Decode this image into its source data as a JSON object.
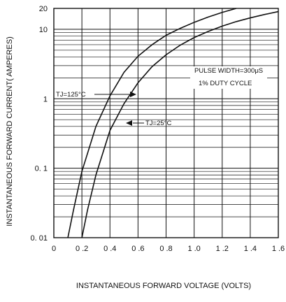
{
  "chart_data": {
    "type": "line",
    "title": "",
    "xlabel": "INSTANTANEOUS FORWARD VOLTAGE (VOLTS)",
    "ylabel": "INSTANTANEOUS FORWARD CURRENT( AMPERES)",
    "xlim": [
      0,
      1.6
    ],
    "ylim": [
      0.01,
      20
    ],
    "yscale": "log",
    "x_ticks": [
      {
        "value": 0,
        "label": "0"
      },
      {
        "value": 0.2,
        "label": "0 .2"
      },
      {
        "value": 0.4,
        "label": "0 .4"
      },
      {
        "value": 0.6,
        "label": "0 .6"
      },
      {
        "value": 0.8,
        "label": "0 .8"
      },
      {
        "value": 1.0,
        "label": "1 .0"
      },
      {
        "value": 1.2,
        "label": "1 .2"
      },
      {
        "value": 1.4,
        "label": "1 .4"
      },
      {
        "value": 1.6,
        "label": "1 .6"
      }
    ],
    "y_ticks": [
      {
        "value": 20,
        "label": "20"
      },
      {
        "value": 10,
        "label": "10"
      },
      {
        "value": 1,
        "label": "1"
      },
      {
        "value": 0.1,
        "label": "0. 1"
      },
      {
        "value": 0.01,
        "label": "0. 01"
      }
    ],
    "grid": true,
    "series": [
      {
        "name": "TJ=125°C",
        "x": [
          0.1,
          0.14,
          0.2,
          0.3,
          0.4,
          0.5,
          0.6,
          0.7,
          0.8,
          0.9,
          1.0,
          1.1,
          1.2,
          1.3
        ],
        "y": [
          0.01,
          0.025,
          0.09,
          0.4,
          1.1,
          2.4,
          4.1,
          6.0,
          8.2,
          10.3,
          12.6,
          15.0,
          17.5,
          20
        ]
      },
      {
        "name": "TJ=25°C",
        "x": [
          0.2,
          0.24,
          0.3,
          0.4,
          0.5,
          0.6,
          0.7,
          0.8,
          0.9,
          1.0,
          1.1,
          1.2,
          1.3,
          1.4,
          1.5,
          1.6
        ],
        "y": [
          0.01,
          0.025,
          0.08,
          0.35,
          0.85,
          1.7,
          2.9,
          4.3,
          5.9,
          7.6,
          9.3,
          11.1,
          12.9,
          14.6,
          16.3,
          18.0
        ]
      }
    ],
    "annotations": {
      "tj125": "TJ=125°C",
      "tj25": "TJ=25°C",
      "pulse": "PULSE WIDTH=300μS",
      "duty": "1% DUTY CYCLE"
    }
  }
}
